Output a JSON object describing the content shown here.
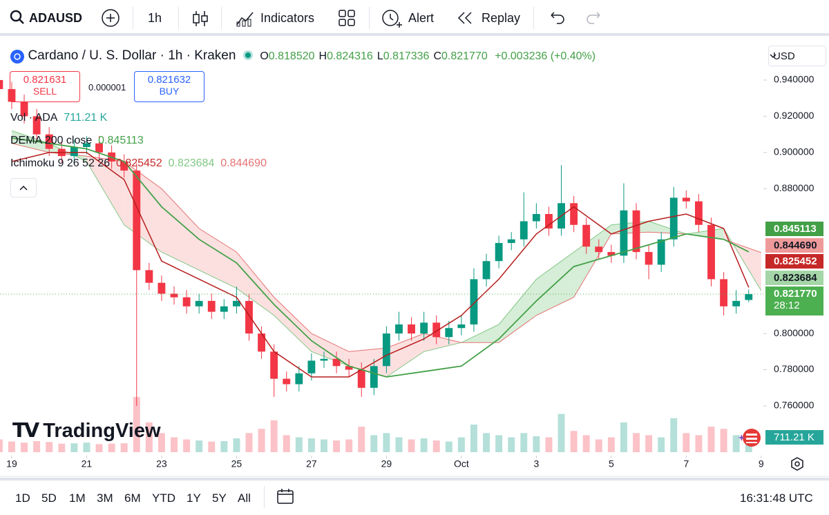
{
  "header": {
    "symbol": "ADAUSD",
    "interval": "1h",
    "indicators": "Indicators",
    "alert": "Alert",
    "replay": "Replay"
  },
  "legend": {
    "title": "Cardano / U. S. Dollar · 1h · Kraken",
    "ohlc": [
      {
        "label": "O",
        "value": "0.818520"
      },
      {
        "label": "H",
        "value": "0.824316"
      },
      {
        "label": "L",
        "value": "0.817336"
      },
      {
        "label": "C",
        "value": "0.821770"
      }
    ],
    "change": "+0.003236 (+0.40%)",
    "sell_price": "0.821631",
    "sell": "SELL",
    "spread": "0.000001",
    "buy_price": "0.821632",
    "buy": "BUY",
    "volume": {
      "label": "Vol · ADA",
      "value": "711.21 K"
    },
    "dema": {
      "label": "DEMA 200 close",
      "value": "0.845113"
    },
    "ichimoku": {
      "label": "Ichimoku 9 26 52 26",
      "values": [
        "0.825452",
        "0.823684",
        "0.844690"
      ]
    }
  },
  "currency": "USD",
  "last_price": "0.821770",
  "countdown": "28:12",
  "watermark": "TradingView",
  "chart_data": {
    "type": "candlestick",
    "x": [
      -8,
      0,
      8,
      16,
      24,
      32,
      40,
      48,
      56,
      64,
      72,
      80,
      88,
      96,
      104,
      112,
      120,
      128,
      136,
      144,
      152,
      160,
      168,
      176,
      184,
      192,
      200,
      208,
      216,
      224,
      232,
      240,
      248,
      256,
      264,
      272,
      280,
      288,
      296,
      304,
      312,
      320,
      328,
      336,
      344,
      352,
      360,
      368,
      376,
      384,
      392,
      400,
      408,
      416,
      424,
      432,
      440,
      448,
      456,
      464,
      472
    ],
    "open": [
      0.94,
      0.935,
      0.928,
      0.92,
      0.91,
      0.902,
      0.898,
      0.903,
      0.905,
      0.9,
      0.895,
      0.89,
      0.835,
      0.828,
      0.822,
      0.82,
      0.815,
      0.818,
      0.812,
      0.815,
      0.818,
      0.8,
      0.79,
      0.775,
      0.772,
      0.778,
      0.785,
      0.786,
      0.782,
      0.78,
      0.77,
      0.782,
      0.8,
      0.805,
      0.8,
      0.806,
      0.798,
      0.803,
      0.805,
      0.83,
      0.84,
      0.85,
      0.852,
      0.862,
      0.866,
      0.858,
      0.872,
      0.86,
      0.848,
      0.845,
      0.843,
      0.868,
      0.845,
      0.838,
      0.852,
      0.875,
      0.873,
      0.86,
      0.83,
      0.815,
      0.81852
    ],
    "high": [
      0.944,
      0.939,
      0.932,
      0.924,
      0.914,
      0.906,
      0.907,
      0.909,
      0.909,
      0.904,
      0.899,
      0.894,
      0.839,
      0.832,
      0.826,
      0.824,
      0.822,
      0.822,
      0.819,
      0.826,
      0.822,
      0.804,
      0.794,
      0.779,
      0.782,
      0.789,
      0.79,
      0.79,
      0.786,
      0.784,
      0.786,
      0.804,
      0.812,
      0.809,
      0.812,
      0.81,
      0.807,
      0.81,
      0.836,
      0.844,
      0.854,
      0.856,
      0.878,
      0.872,
      0.87,
      0.893,
      0.876,
      0.864,
      0.852,
      0.849,
      0.883,
      0.872,
      0.849,
      0.856,
      0.881,
      0.879,
      0.877,
      0.864,
      0.834,
      0.824,
      0.824316
    ],
    "low": [
      0.931,
      0.924,
      0.916,
      0.906,
      0.898,
      0.894,
      0.894,
      0.899,
      0.896,
      0.891,
      0.886,
      0.76,
      0.824,
      0.818,
      0.816,
      0.811,
      0.811,
      0.808,
      0.808,
      0.811,
      0.796,
      0.786,
      0.765,
      0.768,
      0.768,
      0.774,
      0.781,
      0.778,
      0.776,
      0.765,
      0.766,
      0.778,
      0.796,
      0.796,
      0.796,
      0.794,
      0.794,
      0.799,
      0.801,
      0.826,
      0.836,
      0.846,
      0.848,
      0.858,
      0.854,
      0.854,
      0.856,
      0.844,
      0.841,
      0.839,
      0.839,
      0.841,
      0.83,
      0.834,
      0.848,
      0.869,
      0.856,
      0.826,
      0.81,
      0.811,
      0.817336
    ],
    "close": [
      0.935,
      0.928,
      0.92,
      0.91,
      0.902,
      0.898,
      0.903,
      0.905,
      0.9,
      0.895,
      0.89,
      0.835,
      0.828,
      0.822,
      0.82,
      0.815,
      0.818,
      0.812,
      0.815,
      0.818,
      0.8,
      0.79,
      0.775,
      0.772,
      0.778,
      0.785,
      0.786,
      0.782,
      0.78,
      0.77,
      0.782,
      0.8,
      0.805,
      0.8,
      0.806,
      0.798,
      0.803,
      0.805,
      0.83,
      0.84,
      0.85,
      0.852,
      0.862,
      0.866,
      0.858,
      0.872,
      0.86,
      0.848,
      0.845,
      0.843,
      0.868,
      0.845,
      0.838,
      0.852,
      0.875,
      0.873,
      0.86,
      0.83,
      0.815,
      0.818,
      0.82177
    ],
    "volume": [
      600,
      500,
      450,
      520,
      480,
      400,
      420,
      450,
      380,
      400,
      420,
      2600,
      1400,
      900,
      700,
      600,
      550,
      500,
      520,
      650,
      900,
      1100,
      1500,
      800,
      700,
      650,
      600,
      550,
      600,
      1200,
      800,
      900,
      700,
      600,
      650,
      550,
      500,
      700,
      1300,
      900,
      800,
      700,
      900,
      750,
      700,
      1800,
      1000,
      800,
      600,
      700,
      1400,
      900,
      800,
      700,
      1600,
      900,
      800,
      1200,
      1100,
      800,
      711.21
    ],
    "up_color": "#089981",
    "down_color": "#f23645",
    "dema": {
      "color": "#43a047",
      "x": [
        0,
        24,
        48,
        72,
        96,
        120,
        144,
        168,
        192,
        216,
        240,
        264,
        288,
        312,
        336,
        360,
        384,
        408,
        432,
        456,
        472
      ],
      "values": [
        0.908,
        0.905,
        0.902,
        0.895,
        0.87,
        0.852,
        0.839,
        0.816,
        0.796,
        0.782,
        0.776,
        0.779,
        0.782,
        0.797,
        0.818,
        0.837,
        0.843,
        0.849,
        0.855,
        0.852,
        0.845113
      ]
    },
    "base_line": {
      "color": "#b71c1c",
      "x": [
        0,
        24,
        48,
        72,
        96,
        120,
        144,
        168,
        192,
        216,
        240,
        264,
        288,
        312,
        336,
        360,
        384,
        408,
        432,
        456,
        472
      ],
      "values": [
        0.895,
        0.9,
        0.9,
        0.885,
        0.84,
        0.83,
        0.82,
        0.79,
        0.776,
        0.776,
        0.788,
        0.797,
        0.81,
        0.83,
        0.855,
        0.87,
        0.855,
        0.862,
        0.866,
        0.858,
        0.825452
      ]
    },
    "span_a": {
      "color": "#81c784",
      "x": [
        0,
        24,
        48,
        72,
        96,
        120,
        144,
        168,
        192,
        216,
        240,
        264,
        288,
        312,
        336,
        360,
        384,
        408,
        432,
        456,
        480
      ],
      "values": [
        0.912,
        0.905,
        0.895,
        0.86,
        0.845,
        0.835,
        0.825,
        0.81,
        0.79,
        0.782,
        0.776,
        0.79,
        0.795,
        0.805,
        0.83,
        0.845,
        0.86,
        0.862,
        0.855,
        0.858,
        0.823684
      ]
    },
    "span_b": {
      "color": "#e57373",
      "x": [
        0,
        24,
        48,
        72,
        96,
        120,
        144,
        168,
        192,
        216,
        240,
        264,
        288,
        312,
        336,
        360,
        384,
        408,
        432,
        456,
        480
      ],
      "values": [
        0.905,
        0.9,
        0.898,
        0.895,
        0.88,
        0.858,
        0.845,
        0.82,
        0.8,
        0.79,
        0.792,
        0.8,
        0.795,
        0.795,
        0.81,
        0.82,
        0.855,
        0.856,
        0.855,
        0.852,
        0.84469
      ]
    },
    "xlim": [
      -7.5,
      481.4
    ],
    "ylim": [
      0.7211,
      0.9621
    ],
    "xticks": [
      {
        "value": 0,
        "label": "19"
      },
      {
        "value": 48,
        "label": "21"
      },
      {
        "value": 96,
        "label": "23"
      },
      {
        "value": 144,
        "label": "25"
      },
      {
        "value": 192,
        "label": "27"
      },
      {
        "value": 240,
        "label": "29"
      },
      {
        "value": 288,
        "label": "Oct"
      },
      {
        "value": 336,
        "label": "3"
      },
      {
        "value": 384,
        "label": "5"
      },
      {
        "value": 432,
        "label": "7"
      },
      {
        "value": 480,
        "label": "9"
      }
    ],
    "yticks": [
      {
        "value": 0.94,
        "label": "0.940000"
      },
      {
        "value": 0.92,
        "label": "0.920000"
      },
      {
        "value": 0.9,
        "label": "0.900000"
      },
      {
        "value": 0.88,
        "label": "0.880000"
      },
      {
        "value": 0.8,
        "label": "0.800000"
      },
      {
        "value": 0.78,
        "label": "0.780000"
      },
      {
        "value": 0.76,
        "label": "0.760000"
      }
    ]
  },
  "footer": {
    "ranges": [
      "1D",
      "5D",
      "1M",
      "3M",
      "6M",
      "YTD",
      "1Y",
      "5Y",
      "All"
    ],
    "time": "16:31:48 UTC"
  }
}
